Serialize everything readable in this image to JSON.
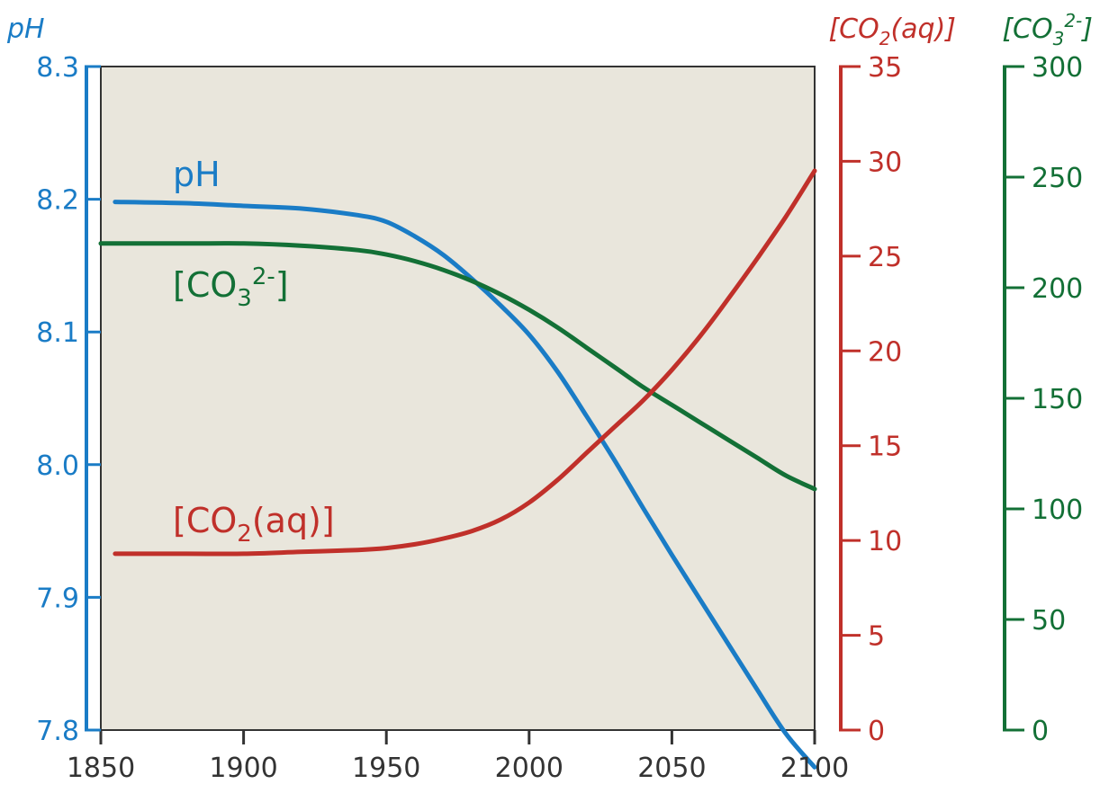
{
  "chart_data": {
    "type": "line",
    "x_ticks": [
      1850,
      1900,
      1950,
      2000,
      2050,
      2100
    ],
    "axes": {
      "ph": {
        "title": "pH",
        "ticks": [
          7.8,
          7.9,
          8.0,
          8.1,
          8.2,
          8.3
        ],
        "tick_labels": [
          "7.8",
          "7.9",
          "8.0",
          "8.1",
          "8.2",
          "8.3"
        ],
        "range": [
          7.8,
          8.3
        ],
        "color": "#1a7cc6"
      },
      "co2": {
        "title": "[CO2(aq)]",
        "ticks": [
          0,
          5,
          10,
          15,
          20,
          25,
          30,
          35
        ],
        "range": [
          0,
          35
        ],
        "color": "#c0302a"
      },
      "co3": {
        "title": "[CO32-]",
        "ticks": [
          0,
          50,
          100,
          150,
          200,
          250,
          300
        ],
        "range": [
          0,
          300
        ],
        "color": "#137036"
      }
    },
    "xlim": [
      1850,
      2100
    ],
    "plot_background": "#e9e6dc",
    "series": [
      {
        "name": "pH",
        "axis": "ph",
        "color": "#1a7cc6",
        "x": [
          1855,
          1880,
          1900,
          1920,
          1940,
          1950,
          1960,
          1970,
          1980,
          1990,
          2000,
          2010,
          2020,
          2030,
          2040,
          2050,
          2060,
          2070,
          2080,
          2090,
          2100
        ],
        "y": [
          8.198,
          8.197,
          8.195,
          8.193,
          8.188,
          8.183,
          8.172,
          8.158,
          8.14,
          8.12,
          8.098,
          8.07,
          8.037,
          8.003,
          7.967,
          7.932,
          7.898,
          7.864,
          7.83,
          7.797,
          7.772
        ]
      },
      {
        "name": "[CO32-]",
        "axis": "co3",
        "color": "#137036",
        "x": [
          1850,
          1880,
          1900,
          1920,
          1940,
          1950,
          1960,
          1970,
          1980,
          1990,
          2000,
          2010,
          2020,
          2030,
          2040,
          2050,
          2060,
          2070,
          2080,
          2090,
          2100
        ],
        "y": [
          220,
          220,
          220,
          219,
          217,
          215,
          212,
          208,
          203,
          197,
          190,
          182,
          173,
          164,
          155,
          147,
          139,
          131,
          123,
          115,
          109
        ]
      },
      {
        "name": "[CO2(aq)]",
        "axis": "co2",
        "color": "#c0302a",
        "x": [
          1855,
          1880,
          1900,
          1920,
          1940,
          1950,
          1960,
          1970,
          1980,
          1990,
          2000,
          2010,
          2020,
          2030,
          2040,
          2050,
          2060,
          2070,
          2080,
          2090,
          2100
        ],
        "y": [
          9.3,
          9.3,
          9.3,
          9.4,
          9.5,
          9.6,
          9.8,
          10.1,
          10.5,
          11.1,
          12.0,
          13.2,
          14.6,
          16.0,
          17.4,
          19.0,
          20.8,
          22.8,
          24.9,
          27.1,
          29.5
        ]
      }
    ],
    "annotations": [
      {
        "text": "pH",
        "series": "pH"
      },
      {
        "text": "[CO",
        "sub": "3",
        "sup": "2-",
        "tail": "]",
        "series": "[CO32-]"
      },
      {
        "text": "[CO",
        "sub": "2",
        "tail": "(aq)]",
        "series": "[CO2(aq)]"
      }
    ]
  }
}
